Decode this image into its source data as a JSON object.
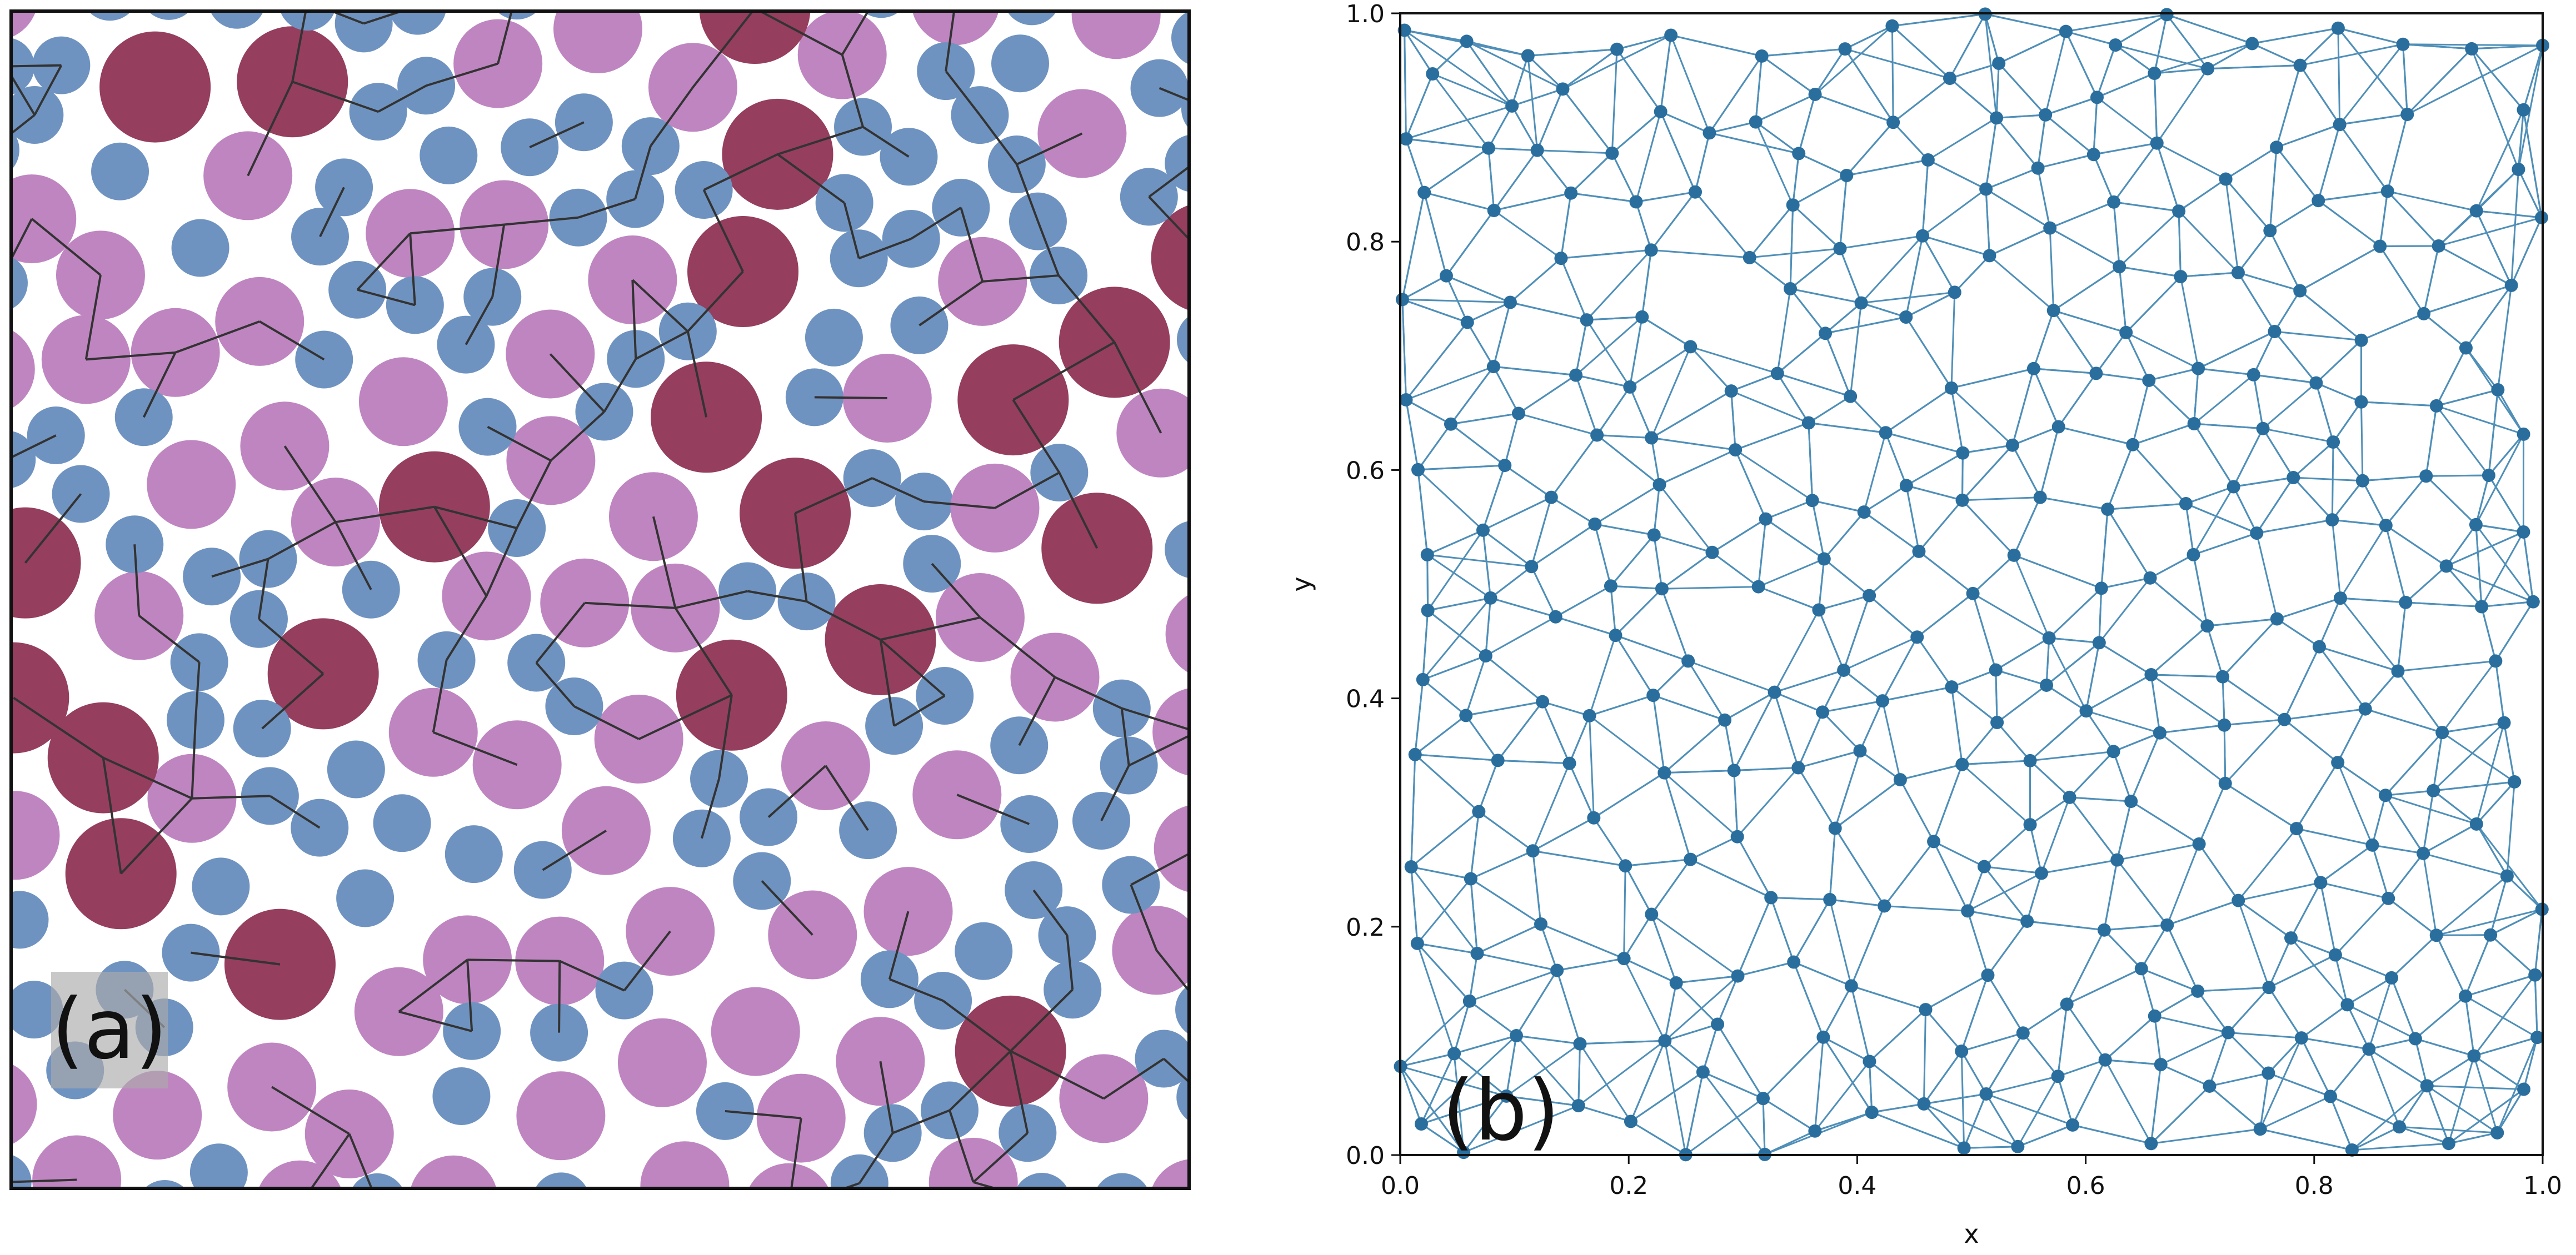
{
  "panel_a": {
    "label": "(a)",
    "colors": {
      "small": "#6f93c0",
      "medium": "#bf85c1",
      "large": "#953e5e",
      "xlarge": "#2b5c57",
      "edges": "#333333",
      "label_box": "#aaaaaa"
    }
  },
  "panel_b": {
    "label": "(b)",
    "chart_data": {
      "type": "scatter",
      "xlabel": "x",
      "ylabel": "y",
      "xlim": [
        0.0,
        1.0
      ],
      "ylim": [
        0.0,
        1.0
      ],
      "xticks": [
        "0.0",
        "0.2",
        "0.4",
        "0.6",
        "0.8",
        "1.0"
      ],
      "yticks": [
        "0.0",
        "0.2",
        "0.4",
        "0.6",
        "0.8",
        "1.0"
      ],
      "grid": false,
      "node_color": "#2a6e9e",
      "edge_color": "#4f8fb8"
    }
  }
}
